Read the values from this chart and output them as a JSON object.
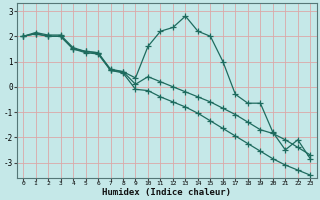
{
  "title": "",
  "xlabel": "Humidex (Indice chaleur)",
  "ylabel": "",
  "bg_color": "#c5e8e8",
  "grid_color": "#dba8a8",
  "line_color": "#1e6b5e",
  "xlim": [
    -0.5,
    23.5
  ],
  "ylim": [
    -3.6,
    3.3
  ],
  "xticks": [
    0,
    1,
    2,
    3,
    4,
    5,
    6,
    7,
    8,
    9,
    10,
    11,
    12,
    13,
    14,
    15,
    16,
    17,
    18,
    19,
    20,
    21,
    22,
    23
  ],
  "yticks": [
    -3,
    -2,
    -1,
    0,
    1,
    2,
    3
  ],
  "line1_x": [
    0,
    1,
    2,
    3,
    4,
    5,
    6,
    7,
    8,
    9,
    10,
    11,
    12,
    13,
    14,
    15,
    16,
    17,
    18,
    19,
    20,
    21,
    22,
    23
  ],
  "line1_y": [
    2.0,
    2.15,
    2.05,
    2.05,
    1.55,
    1.4,
    1.35,
    0.65,
    0.6,
    0.35,
    1.6,
    2.2,
    2.35,
    2.8,
    2.2,
    2.0,
    1.0,
    -0.3,
    -0.65,
    -0.65,
    -1.8,
    -2.5,
    -2.1,
    -2.85
  ],
  "line2_x": [
    0,
    1,
    2,
    3,
    4,
    5,
    6,
    7,
    8,
    9,
    10,
    11,
    12,
    13,
    14,
    15,
    16,
    17,
    18,
    19,
    20,
    21,
    22,
    23
  ],
  "line2_y": [
    2.0,
    2.1,
    2.0,
    2.0,
    1.5,
    1.35,
    1.3,
    0.65,
    0.55,
    -0.1,
    -0.15,
    -0.4,
    -0.6,
    -0.8,
    -1.05,
    -1.35,
    -1.65,
    -1.95,
    -2.25,
    -2.55,
    -2.85,
    -3.1,
    -3.3,
    -3.5
  ],
  "line3_x": [
    0,
    1,
    2,
    3,
    4,
    5,
    6,
    7,
    8,
    9,
    10,
    11,
    12,
    13,
    14,
    15,
    16,
    17,
    18,
    19,
    20,
    21,
    22,
    23
  ],
  "line3_y": [
    2.0,
    2.1,
    2.0,
    2.0,
    1.5,
    1.4,
    1.35,
    0.7,
    0.6,
    0.1,
    0.4,
    0.2,
    0.0,
    -0.2,
    -0.4,
    -0.6,
    -0.85,
    -1.1,
    -1.4,
    -1.7,
    -1.85,
    -2.1,
    -2.4,
    -2.7
  ],
  "marker": "+",
  "markersize": 4,
  "linewidth": 0.9
}
